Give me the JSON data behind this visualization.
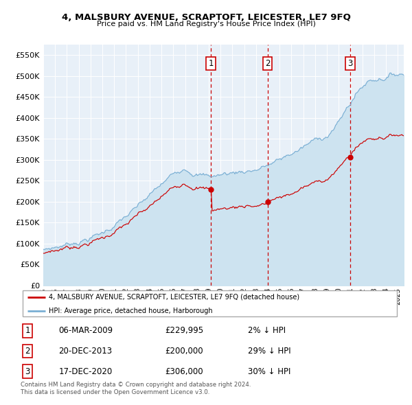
{
  "title": "4, MALSBURY AVENUE, SCRAPTOFT, LEICESTER, LE7 9FQ",
  "subtitle": "Price paid vs. HM Land Registry's House Price Index (HPI)",
  "ylabel_ticks": [
    "£0",
    "£50K",
    "£100K",
    "£150K",
    "£200K",
    "£250K",
    "£300K",
    "£350K",
    "£400K",
    "£450K",
    "£500K",
    "£550K"
  ],
  "ytick_values": [
    0,
    50000,
    100000,
    150000,
    200000,
    250000,
    300000,
    350000,
    400000,
    450000,
    500000,
    550000
  ],
  "hpi_color": "#7aafd4",
  "hpi_fill_color": "#cde3f0",
  "price_color": "#cc0000",
  "vline_color": "#cc0000",
  "grid_color": "#c8c8c8",
  "bg_color": "#e8f0f8",
  "transactions": [
    {
      "num": 1,
      "date": "06-MAR-2009",
      "price": 229995,
      "note": "2% ↓ HPI",
      "x_year": 2009.18
    },
    {
      "num": 2,
      "date": "20-DEC-2013",
      "price": 200000,
      "note": "29% ↓ HPI",
      "x_year": 2013.97
    },
    {
      "num": 3,
      "date": "17-DEC-2020",
      "price": 306000,
      "note": "30% ↓ HPI",
      "x_year": 2020.97
    }
  ],
  "legend_label_price": "4, MALSBURY AVENUE, SCRAPTOFT, LEICESTER, LE7 9FQ (detached house)",
  "legend_label_hpi": "HPI: Average price, detached house, Harborough",
  "footnote": "Contains HM Land Registry data © Crown copyright and database right 2024.\nThis data is licensed under the Open Government Licence v3.0.",
  "xmin": 1995,
  "xmax": 2025.5,
  "ymin": 0,
  "ymax": 575000
}
